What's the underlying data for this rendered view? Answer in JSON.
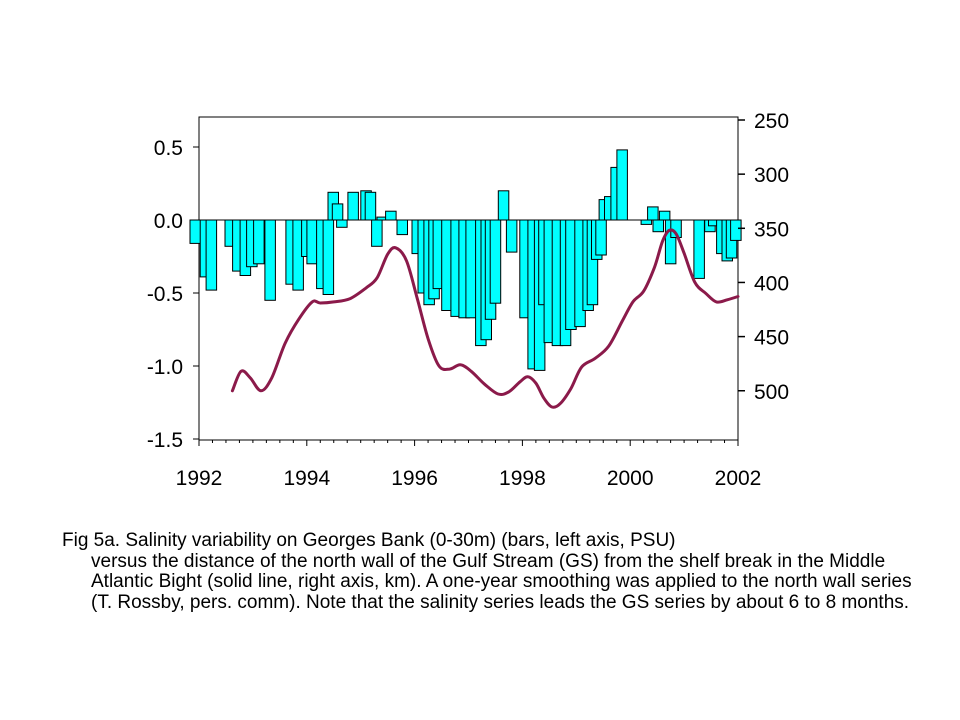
{
  "chart_data": {
    "type": "bar",
    "title": "",
    "xlabel": "",
    "ylabel": "",
    "x_ticks": [
      "1992",
      "1994",
      "1996",
      "1998",
      "2000",
      "2002"
    ],
    "xlim": [
      1992,
      2002
    ],
    "left_axis": {
      "ticks": [
        "0.5",
        "0.0",
        "-0.5",
        "-1.0",
        "-1.5"
      ],
      "ylim": [
        -1.5,
        0.65
      ]
    },
    "right_axis": {
      "ticks": [
        "250",
        "300",
        "350",
        "400",
        "450",
        "500"
      ],
      "ylim": [
        250,
        545
      ],
      "inverted": true
    },
    "grid": false,
    "legend": "none",
    "series": [
      {
        "kind": "bars",
        "axis": "left",
        "color": "#00ffff",
        "points": [
          {
            "x": 1991.93,
            "y": -0.16
          },
          {
            "x": 1992.12,
            "y": -0.39
          },
          {
            "x": 1992.23,
            "y": -0.48
          },
          {
            "x": 1992.58,
            "y": -0.18
          },
          {
            "x": 1992.72,
            "y": -0.35
          },
          {
            "x": 1992.86,
            "y": -0.38
          },
          {
            "x": 1992.98,
            "y": -0.32
          },
          {
            "x": 1993.11,
            "y": -0.3
          },
          {
            "x": 1993.32,
            "y": -0.55
          },
          {
            "x": 1993.71,
            "y": -0.44
          },
          {
            "x": 1993.84,
            "y": -0.48
          },
          {
            "x": 1994.0,
            "y": -0.25
          },
          {
            "x": 1994.1,
            "y": -0.3
          },
          {
            "x": 1994.28,
            "y": -0.47
          },
          {
            "x": 1994.4,
            "y": -0.51
          },
          {
            "x": 1994.49,
            "y": 0.19
          },
          {
            "x": 1994.57,
            "y": 0.11
          },
          {
            "x": 1994.65,
            "y": -0.05
          },
          {
            "x": 1994.86,
            "y": 0.19
          },
          {
            "x": 1995.1,
            "y": 0.2
          },
          {
            "x": 1995.18,
            "y": 0.19
          },
          {
            "x": 1995.3,
            "y": -0.18
          },
          {
            "x": 1995.4,
            "y": 0.02
          },
          {
            "x": 1995.56,
            "y": 0.06
          },
          {
            "x": 1995.77,
            "y": -0.1
          },
          {
            "x": 1996.05,
            "y": -0.23
          },
          {
            "x": 1996.16,
            "y": -0.5
          },
          {
            "x": 1996.27,
            "y": -0.58
          },
          {
            "x": 1996.36,
            "y": -0.54
          },
          {
            "x": 1996.44,
            "y": -0.47
          },
          {
            "x": 1996.6,
            "y": -0.62
          },
          {
            "x": 1996.77,
            "y": -0.66
          },
          {
            "x": 1996.92,
            "y": -0.67
          },
          {
            "x": 1997.05,
            "y": -0.67
          },
          {
            "x": 1997.23,
            "y": -0.86
          },
          {
            "x": 1997.33,
            "y": -0.82
          },
          {
            "x": 1997.41,
            "y": -0.68
          },
          {
            "x": 1997.5,
            "y": -0.57
          },
          {
            "x": 1997.65,
            "y": 0.2
          },
          {
            "x": 1997.8,
            "y": -0.22
          },
          {
            "x": 1998.05,
            "y": -0.67
          },
          {
            "x": 1998.2,
            "y": -1.02
          },
          {
            "x": 1998.32,
            "y": -1.03
          },
          {
            "x": 1998.4,
            "y": -0.58
          },
          {
            "x": 1998.5,
            "y": -0.84
          },
          {
            "x": 1998.65,
            "y": -0.86
          },
          {
            "x": 1998.8,
            "y": -0.86
          },
          {
            "x": 1998.9,
            "y": -0.75
          },
          {
            "x": 1999.07,
            "y": -0.73
          },
          {
            "x": 1999.22,
            "y": -0.62
          },
          {
            "x": 1999.3,
            "y": -0.58
          },
          {
            "x": 1999.38,
            "y": -0.27
          },
          {
            "x": 1999.46,
            "y": -0.24
          },
          {
            "x": 1999.52,
            "y": 0.14
          },
          {
            "x": 1999.62,
            "y": 0.16
          },
          {
            "x": 1999.74,
            "y": 0.36
          },
          {
            "x": 1999.85,
            "y": 0.48
          },
          {
            "x": 2000.3,
            "y": -0.03
          },
          {
            "x": 2000.42,
            "y": 0.09
          },
          {
            "x": 2000.52,
            "y": -0.08
          },
          {
            "x": 2000.64,
            "y": 0.06
          },
          {
            "x": 2000.75,
            "y": -0.3
          },
          {
            "x": 2000.85,
            "y": -0.12
          },
          {
            "x": 2001.28,
            "y": -0.4
          },
          {
            "x": 2001.48,
            "y": -0.08
          },
          {
            "x": 2001.55,
            "y": -0.04
          },
          {
            "x": 2001.7,
            "y": -0.23
          },
          {
            "x": 2001.8,
            "y": -0.28
          },
          {
            "x": 2001.88,
            "y": -0.26
          },
          {
            "x": 2001.96,
            "y": -0.14
          }
        ]
      },
      {
        "kind": "line",
        "axis": "right",
        "color": "#8b1a4a",
        "points": [
          {
            "x": 1992.62,
            "y": 500
          },
          {
            "x": 1992.78,
            "y": 482
          },
          {
            "x": 1992.95,
            "y": 488
          },
          {
            "x": 1993.15,
            "y": 500
          },
          {
            "x": 1993.35,
            "y": 488
          },
          {
            "x": 1993.6,
            "y": 456
          },
          {
            "x": 1993.85,
            "y": 434
          },
          {
            "x": 1994.1,
            "y": 418
          },
          {
            "x": 1994.25,
            "y": 419
          },
          {
            "x": 1994.5,
            "y": 418
          },
          {
            "x": 1994.8,
            "y": 415
          },
          {
            "x": 1995.1,
            "y": 405
          },
          {
            "x": 1995.3,
            "y": 396
          },
          {
            "x": 1995.5,
            "y": 374
          },
          {
            "x": 1995.65,
            "y": 368
          },
          {
            "x": 1995.85,
            "y": 380
          },
          {
            "x": 1996.05,
            "y": 415
          },
          {
            "x": 1996.25,
            "y": 452
          },
          {
            "x": 1996.45,
            "y": 477
          },
          {
            "x": 1996.65,
            "y": 480
          },
          {
            "x": 1996.85,
            "y": 476
          },
          {
            "x": 1997.05,
            "y": 482
          },
          {
            "x": 1997.3,
            "y": 494
          },
          {
            "x": 1997.55,
            "y": 503
          },
          {
            "x": 1997.75,
            "y": 501
          },
          {
            "x": 1997.95,
            "y": 492
          },
          {
            "x": 1998.1,
            "y": 487
          },
          {
            "x": 1998.25,
            "y": 493
          },
          {
            "x": 1998.4,
            "y": 507
          },
          {
            "x": 1998.55,
            "y": 515
          },
          {
            "x": 1998.7,
            "y": 512
          },
          {
            "x": 1998.9,
            "y": 498
          },
          {
            "x": 1999.1,
            "y": 478
          },
          {
            "x": 1999.35,
            "y": 470
          },
          {
            "x": 1999.6,
            "y": 459
          },
          {
            "x": 1999.85,
            "y": 436
          },
          {
            "x": 2000.05,
            "y": 418
          },
          {
            "x": 2000.25,
            "y": 408
          },
          {
            "x": 2000.45,
            "y": 386
          },
          {
            "x": 2000.6,
            "y": 362
          },
          {
            "x": 2000.72,
            "y": 352
          },
          {
            "x": 2000.85,
            "y": 355
          },
          {
            "x": 2001.0,
            "y": 373
          },
          {
            "x": 2001.2,
            "y": 400
          },
          {
            "x": 2001.4,
            "y": 410
          },
          {
            "x": 2001.6,
            "y": 418
          },
          {
            "x": 2001.8,
            "y": 416
          },
          {
            "x": 2002.0,
            "y": 413
          }
        ]
      }
    ]
  },
  "caption": {
    "first_line": "Fig 5a. Salinity variability on Georges Bank (0-30m) (bars, left axis, PSU)",
    "rest": "versus the distance of the north wall of the Gulf Stream (GS) from the shelf break in the Middle Atlantic Bight (solid line, right axis, km).  A one-year smoothing was applied to the north wall series (T. Rossby, pers. comm). Note that the salinity series leads the GS series by about 6 to 8 months."
  }
}
